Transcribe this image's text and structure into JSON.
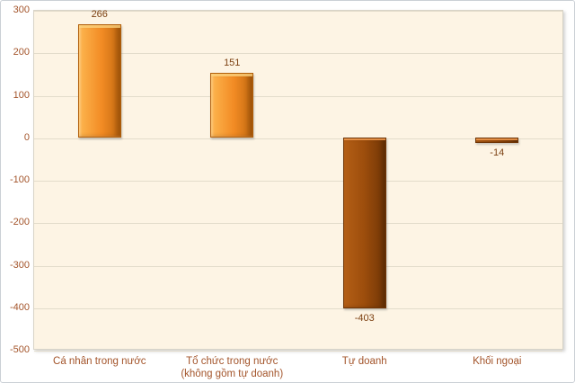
{
  "chart_data": {
    "type": "bar",
    "title": "",
    "categories": [
      {
        "label": "Cá nhân trong nước",
        "sublabel": ""
      },
      {
        "label": "Tổ chức trong nước",
        "sublabel": "(không gồm tự doanh)"
      },
      {
        "label": "Tự doanh",
        "sublabel": ""
      },
      {
        "label": "Khối ngoại",
        "sublabel": ""
      }
    ],
    "values": [
      266,
      151,
      -403,
      -14
    ],
    "data_labels": [
      "266",
      "151",
      "-403",
      "-14"
    ],
    "xlabel": "",
    "ylabel": "",
    "ylim": [
      -500,
      300
    ],
    "yticks": [
      300,
      200,
      100,
      0,
      -100,
      -200,
      -300,
      -400,
      -500
    ],
    "grid": true,
    "legend": false,
    "colors": {
      "positive_bar_light": "#fdb64f",
      "positive_bar_mid": "#f28b24",
      "positive_bar_dark": "#c36a10",
      "negative_bar_light": "#b45f16",
      "negative_bar_mid": "#9c4d0c",
      "negative_bar_dark": "#6f3506",
      "data_label": "#7b3f10",
      "axis_text": "#a3542a",
      "plot_bg": "#fdf4e4",
      "gridline": "#e3dccb",
      "plot_border": "#d8d3c7",
      "page_bg": "#ffffff",
      "outer_border": "#cbd0d6"
    }
  }
}
